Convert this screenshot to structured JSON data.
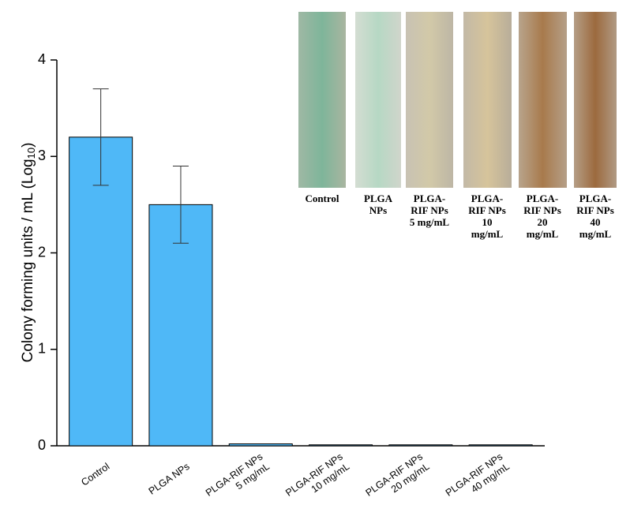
{
  "chart_data": {
    "type": "bar",
    "y_label_parts": [
      "Colony forming units / mL (Log",
      "10",
      ")"
    ],
    "categories": [
      [
        "Control"
      ],
      [
        "PLGA NPs"
      ],
      [
        "PLGA-RIF NPs",
        "5 mg/mL"
      ],
      [
        "PLGA-RIF NPs",
        "10 mg/mL"
      ],
      [
        "PLGA-RIF NPs",
        "20 mg/mL"
      ],
      [
        "PLGA-RIF NPs",
        "40 mg/mL"
      ]
    ],
    "values": [
      3.2,
      2.5,
      0.02,
      0.01,
      0.01,
      0.01
    ],
    "errors": [
      0.5,
      0.4,
      null,
      null,
      null,
      null
    ],
    "color": "#4fb8f7",
    "ylim": [
      0,
      4
    ],
    "yticks": [
      0,
      1,
      2,
      3,
      4
    ],
    "grid": false
  },
  "inset": {
    "labels": [
      [
        "Control"
      ],
      [
        "PLGA",
        "NPs"
      ],
      [
        "PLGA-",
        "RIF NPs",
        "5 mg/mL"
      ],
      [
        "PLGA-",
        "RIF NPs",
        "10",
        "mg/mL"
      ],
      [
        "PLGA-",
        "RIF NPs",
        "20",
        "mg/mL"
      ],
      [
        "PLGA-",
        "RIF NPs",
        "40",
        "mg/mL"
      ]
    ]
  }
}
